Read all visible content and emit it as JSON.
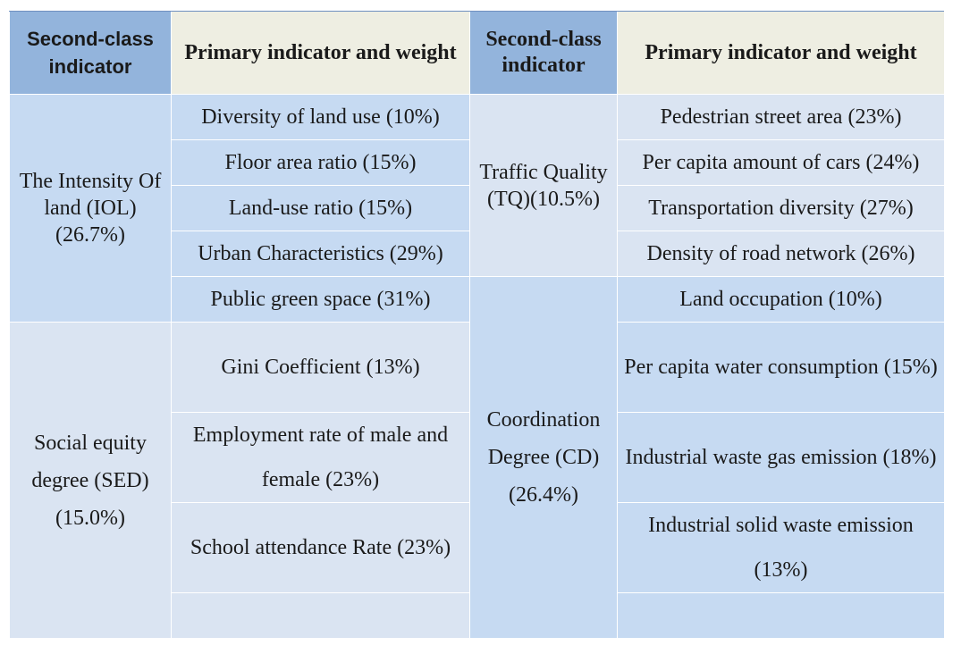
{
  "headers": {
    "col1": "Second-class indicator",
    "col2": "Primary indicator and weight",
    "col3": "Second-class indicator",
    "col4": "Primary indicator and weight"
  },
  "left": {
    "iol_label": "The Intensity Of land (IOL)(26.7%)",
    "sed_label": "Social equity degree (SED)(15.0%)",
    "items": [
      "Diversity of land use (10%)",
      "Floor area ratio (15%)",
      "Land-use ratio (15%)",
      "Urban Characteristics (29%)",
      "Public green space (31%)",
      "Gini Coefficient (13%)",
      "Employment rate of male and female (23%)",
      "School attendance Rate (23%)"
    ]
  },
  "right": {
    "tq_label": "Traffic Quality (TQ)(10.5%)",
    "cd_label": "Coordination Degree (CD)(26.4%)",
    "items": [
      "Pedestrian street area (23%)",
      "Per capita amount of cars (24%)",
      "Transportation diversity (27%)",
      "Density of road network (26%)",
      "Land occupation (10%)",
      "Per capita water consumption (15%)",
      "Industrial waste gas emission (18%)",
      "Industrial solid waste emission (13%)"
    ]
  }
}
